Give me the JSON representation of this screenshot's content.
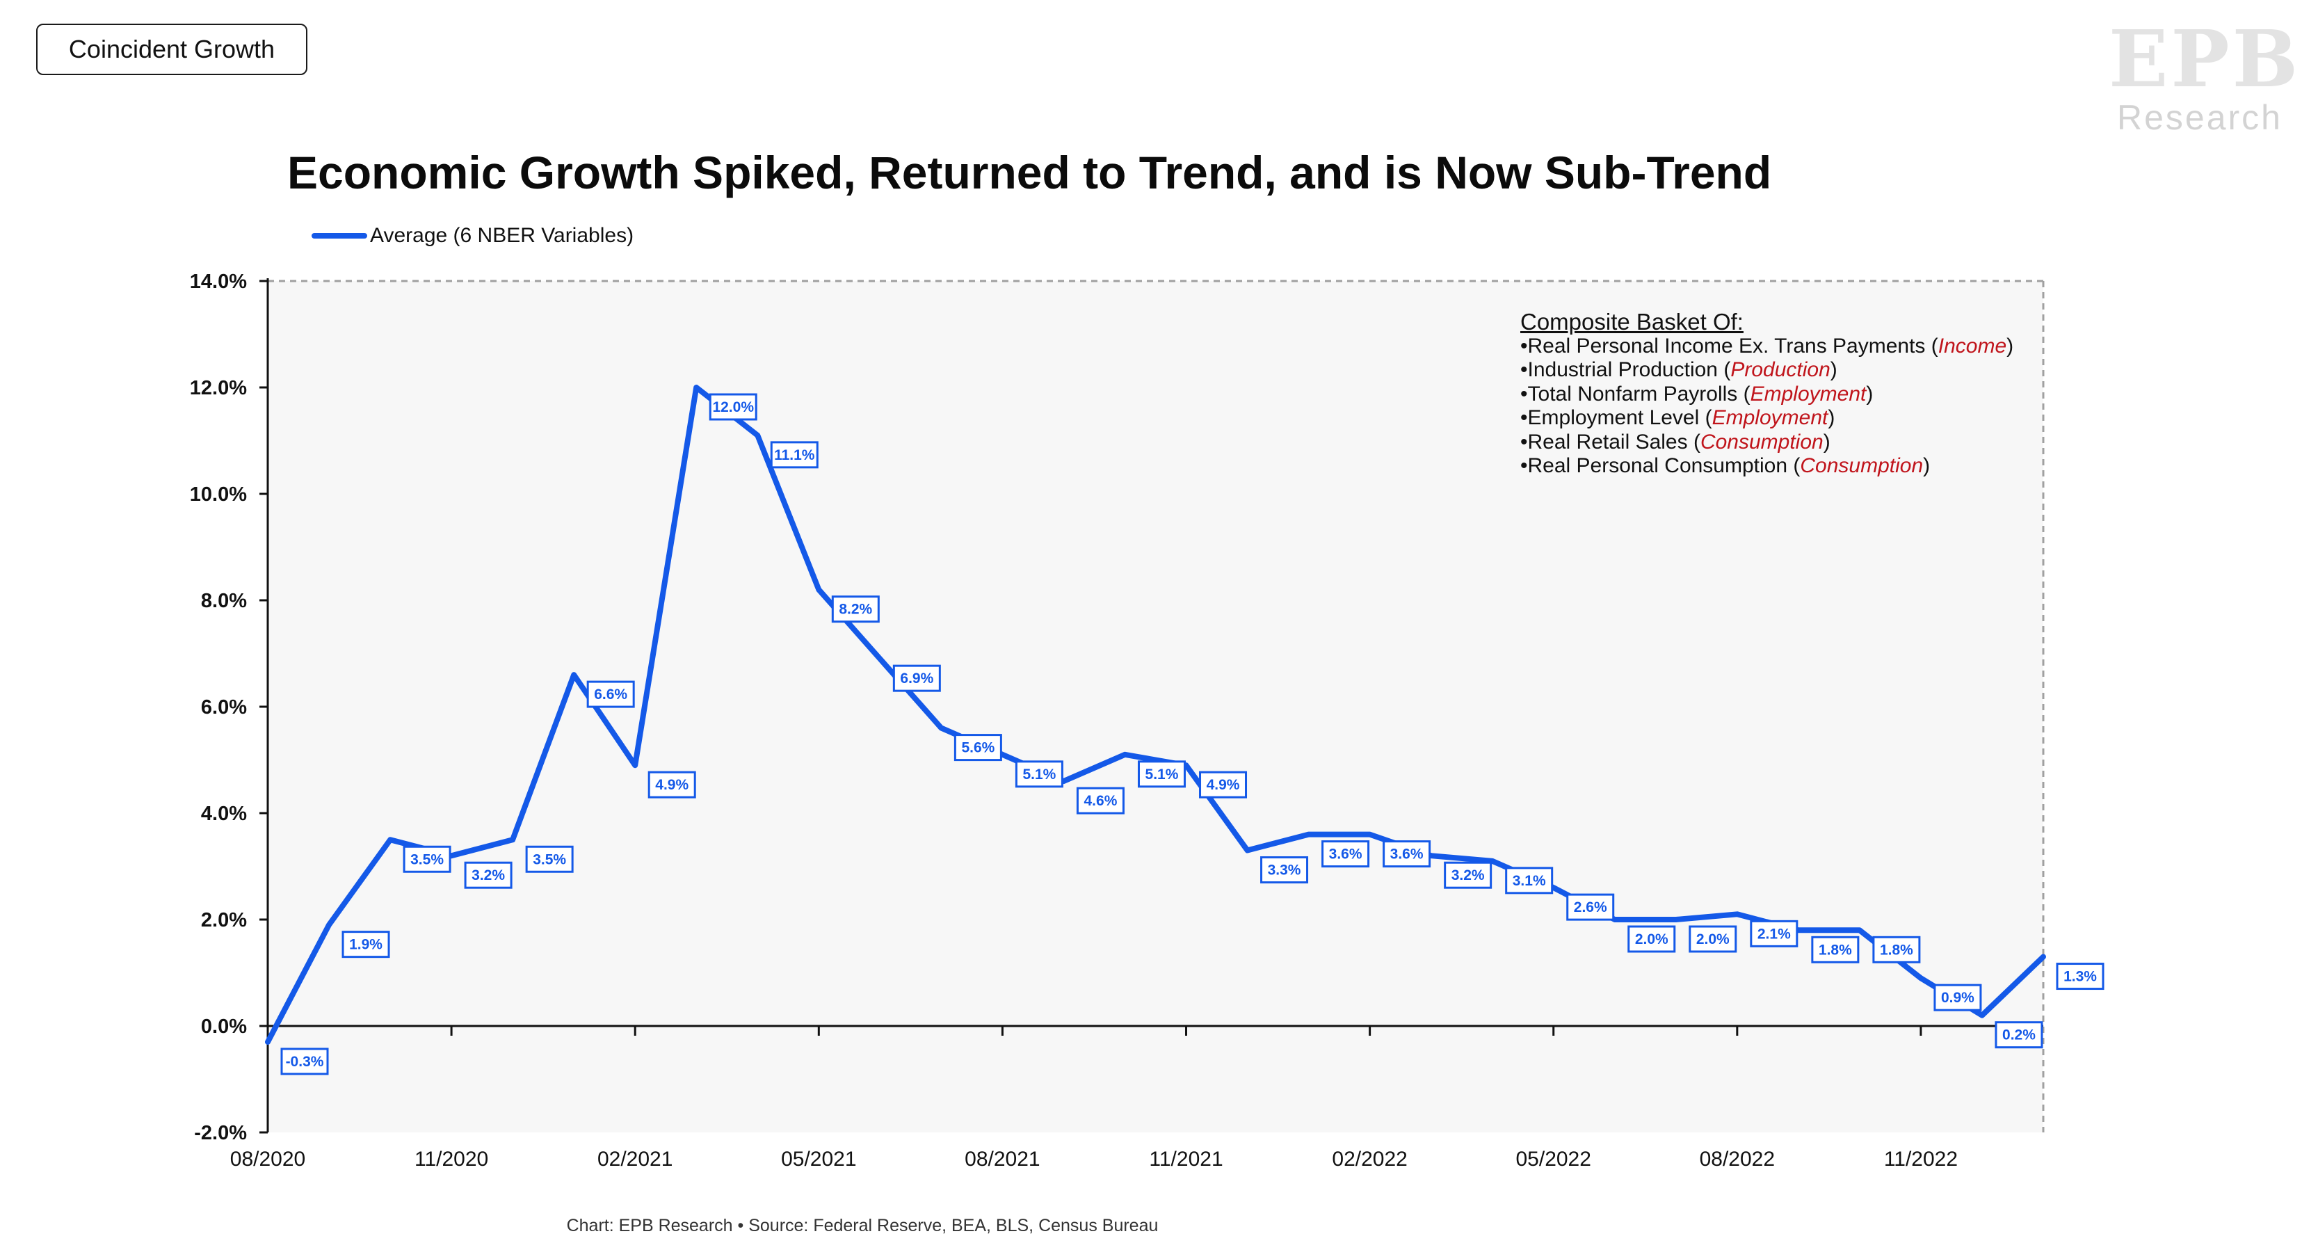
{
  "badge": {
    "label": "Coincident Growth"
  },
  "logo": {
    "mark": "EPB",
    "sub": "Research"
  },
  "title": "Economic Growth Spiked, Returned to Trend, and is Now Sub-Trend",
  "legend": {
    "label": "Average (6 NBER Variables)"
  },
  "basket": {
    "heading": "Composite Basket Of:",
    "items": [
      {
        "name": "•Real Personal Income Ex. Trans Payments (",
        "category": "Income",
        "close": ")"
      },
      {
        "name": "•Industrial Production (",
        "category": "Production",
        "close": ")"
      },
      {
        "name": "•Total Nonfarm Payrolls (",
        "category": "Employment",
        "close": ")"
      },
      {
        "name": "•Employment Level (",
        "category": "Employment",
        "close": ")"
      },
      {
        "name": "•Real Retail Sales (",
        "category": "Consumption",
        "close": ")"
      },
      {
        "name": "•Real Personal Consumption (",
        "category": "Consumption",
        "close": ")"
      }
    ]
  },
  "source": "Chart: EPB Research • Source: Federal Reserve, BEA, BLS, Census Bureau",
  "colors": {
    "line": "#1459e8",
    "plot_bg": "#f7f7f7",
    "category": "#c0141b"
  },
  "chart_data": {
    "type": "line",
    "x": [
      "08/2020",
      "09/2020",
      "10/2020",
      "11/2020",
      "12/2020",
      "01/2021",
      "02/2021",
      "03/2021",
      "04/2021",
      "05/2021",
      "06/2021",
      "07/2021",
      "08/2021",
      "09/2021",
      "10/2021",
      "11/2021",
      "12/2021",
      "01/2022",
      "02/2022",
      "03/2022",
      "04/2022",
      "05/2022",
      "06/2022",
      "07/2022",
      "08/2022",
      "09/2022",
      "10/2022",
      "11/2022",
      "12/2022",
      "01/2023"
    ],
    "series": [
      {
        "name": "Average (6 NBER Variables)",
        "values": [
          -0.3,
          1.9,
          3.5,
          3.2,
          3.5,
          6.6,
          4.9,
          12.0,
          11.1,
          8.2,
          6.9,
          5.6,
          5.1,
          4.6,
          5.1,
          4.9,
          3.3,
          3.6,
          3.6,
          3.2,
          3.1,
          2.6,
          2.0,
          2.0,
          2.1,
          1.8,
          1.8,
          0.9,
          0.2,
          1.3
        ]
      }
    ],
    "data_labels": [
      "-0.3%",
      "1.9%",
      "3.5%",
      "3.2%",
      "3.5%",
      "6.6%",
      "4.9%",
      "12.0%",
      "11.1%",
      "8.2%",
      "6.9%",
      "5.6%",
      "5.1%",
      "4.6%",
      "5.1%",
      "4.9%",
      "3.3%",
      "3.6%",
      "3.6%",
      "3.2%",
      "3.1%",
      "2.6%",
      "2.0%",
      "2.0%",
      "2.1%",
      "1.8%",
      "1.8%",
      "0.9%",
      "0.2%",
      "1.3%"
    ],
    "x_tick_labels": [
      "08/2020",
      "11/2020",
      "02/2021",
      "05/2021",
      "08/2021",
      "11/2021",
      "02/2022",
      "05/2022",
      "08/2022",
      "11/2022"
    ],
    "y_ticks": [
      -2.0,
      0.0,
      2.0,
      4.0,
      6.0,
      8.0,
      10.0,
      12.0,
      14.0
    ],
    "y_tick_labels": [
      "-2.0%",
      "0.0%",
      "2.0%",
      "4.0%",
      "6.0%",
      "8.0%",
      "10.0%",
      "12.0%",
      "14.0%"
    ],
    "ylim": [
      -2.0,
      14.0
    ],
    "grid": false,
    "legend_position": "top-left"
  }
}
